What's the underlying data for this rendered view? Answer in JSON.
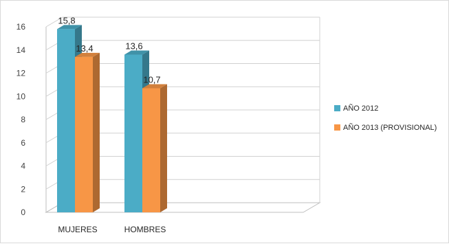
{
  "chart_data": {
    "type": "bar",
    "title": "",
    "xlabel": "",
    "ylabel": "",
    "categories": [
      "MUJERES",
      "HOMBRES"
    ],
    "series": [
      {
        "name": "AÑO 2012",
        "values": [
          15.8,
          13.6
        ],
        "color": "#4bacc6"
      },
      {
        "name": "AÑO 2013 (PROVISIONAL)",
        "values": [
          13.4,
          10.7
        ],
        "color": "#f79646"
      }
    ],
    "data_labels": [
      [
        "15,8",
        "13,6"
      ],
      [
        "13,4",
        "10,7"
      ]
    ],
    "ylim": [
      0,
      16
    ],
    "yticks": [
      0,
      2,
      4,
      6,
      8,
      10,
      12,
      14,
      16
    ],
    "grid": true,
    "legend_position": "right",
    "style": "3d-clustered-column"
  }
}
